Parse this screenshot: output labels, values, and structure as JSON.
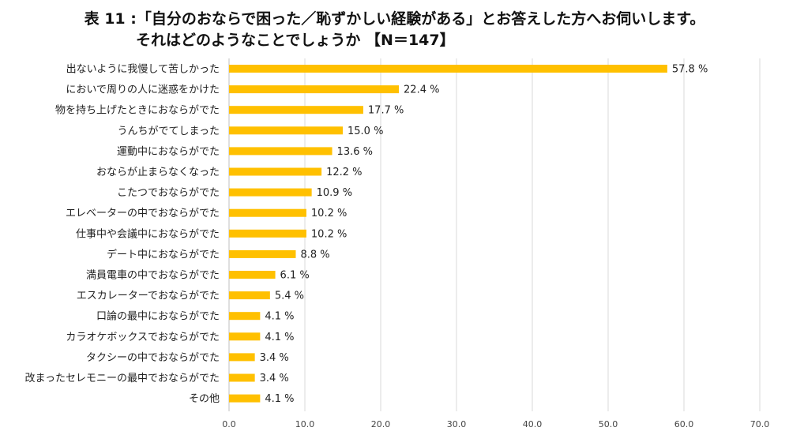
{
  "title_line1": "表 11 :「自分のおならで困った／恥ずかしい経験がある」とお答えした方へお伺いします。",
  "title_line2": "それはどのようなことでしょうか 【N＝147】",
  "colors": {
    "bar": "#FFC000",
    "grid": "#D9D9D9",
    "axis": "#BFBFBF"
  },
  "chart_data": {
    "type": "bar",
    "orientation": "horizontal",
    "categories": [
      "出ないように我慢して苦しかった",
      "においで周りの人に迷惑をかけた",
      "物を持ち上げたときにおならがでた",
      "うんちがでてしまった",
      "運動中におならがでた",
      "おならが止まらなくなった",
      "こたつでおならがでた",
      "エレベーターの中でおならがでた",
      "仕事中や会議中におならがでた",
      "デート中におならがでた",
      "満員電車の中でおならがでた",
      "エスカレーターでおならがでた",
      "口論の最中におならがでた",
      "カラオケボックスでおならがでた",
      "タクシーの中でおならがでた",
      "改まったセレモニーの最中でおならがでた",
      "その他"
    ],
    "values": [
      57.8,
      22.4,
      17.7,
      15.0,
      13.6,
      12.2,
      10.9,
      10.2,
      10.2,
      8.8,
      6.1,
      5.4,
      4.1,
      4.1,
      3.4,
      3.4,
      4.1
    ],
    "value_labels": [
      "57.8 %",
      "22.4 %",
      "17.7 %",
      "15.0 %",
      "13.6 %",
      "12.2 %",
      "10.9 %",
      "10.2 %",
      "10.2 %",
      "8.8 %",
      "6.1 %",
      "5.4 %",
      "4.1 %",
      "4.1 %",
      "3.4 %",
      "3.4 %",
      "4.1 %"
    ],
    "xlim": [
      0,
      70
    ],
    "xticks": [
      "0.0",
      "10.0",
      "20.0",
      "30.0",
      "40.0",
      "50.0",
      "60.0",
      "70.0"
    ],
    "grid": true
  }
}
